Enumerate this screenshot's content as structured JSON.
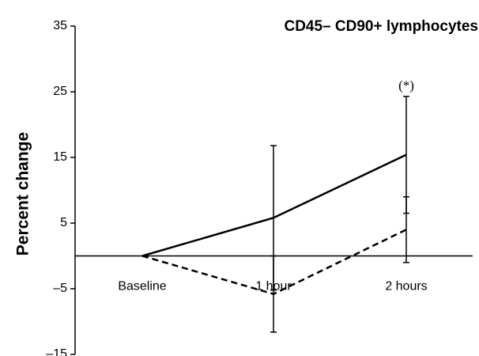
{
  "chart_data": {
    "type": "line",
    "title": "CD45– CD90+ lymphocytes",
    "y_label": "Percent change",
    "annotation": "(*)",
    "categories": [
      "Baseline",
      "1 hour",
      "2 hours"
    ],
    "series": [
      {
        "color": "#000000",
        "dash": false,
        "values": [
          0,
          5.8,
          15.4
        ],
        "errors": [
          null,
          11,
          8.9
        ]
      },
      {
        "color": "#000000",
        "dash": true,
        "values": [
          0,
          -5.8,
          4.0
        ],
        "errors": [
          null,
          5.8,
          5.0
        ]
      }
    ],
    "ylim": [
      -15,
      35
    ],
    "yticks": [
      {
        "value": -15,
        "label": "–15"
      },
      {
        "value": -5,
        "label": "–5"
      },
      5,
      15,
      25,
      35
    ]
  }
}
